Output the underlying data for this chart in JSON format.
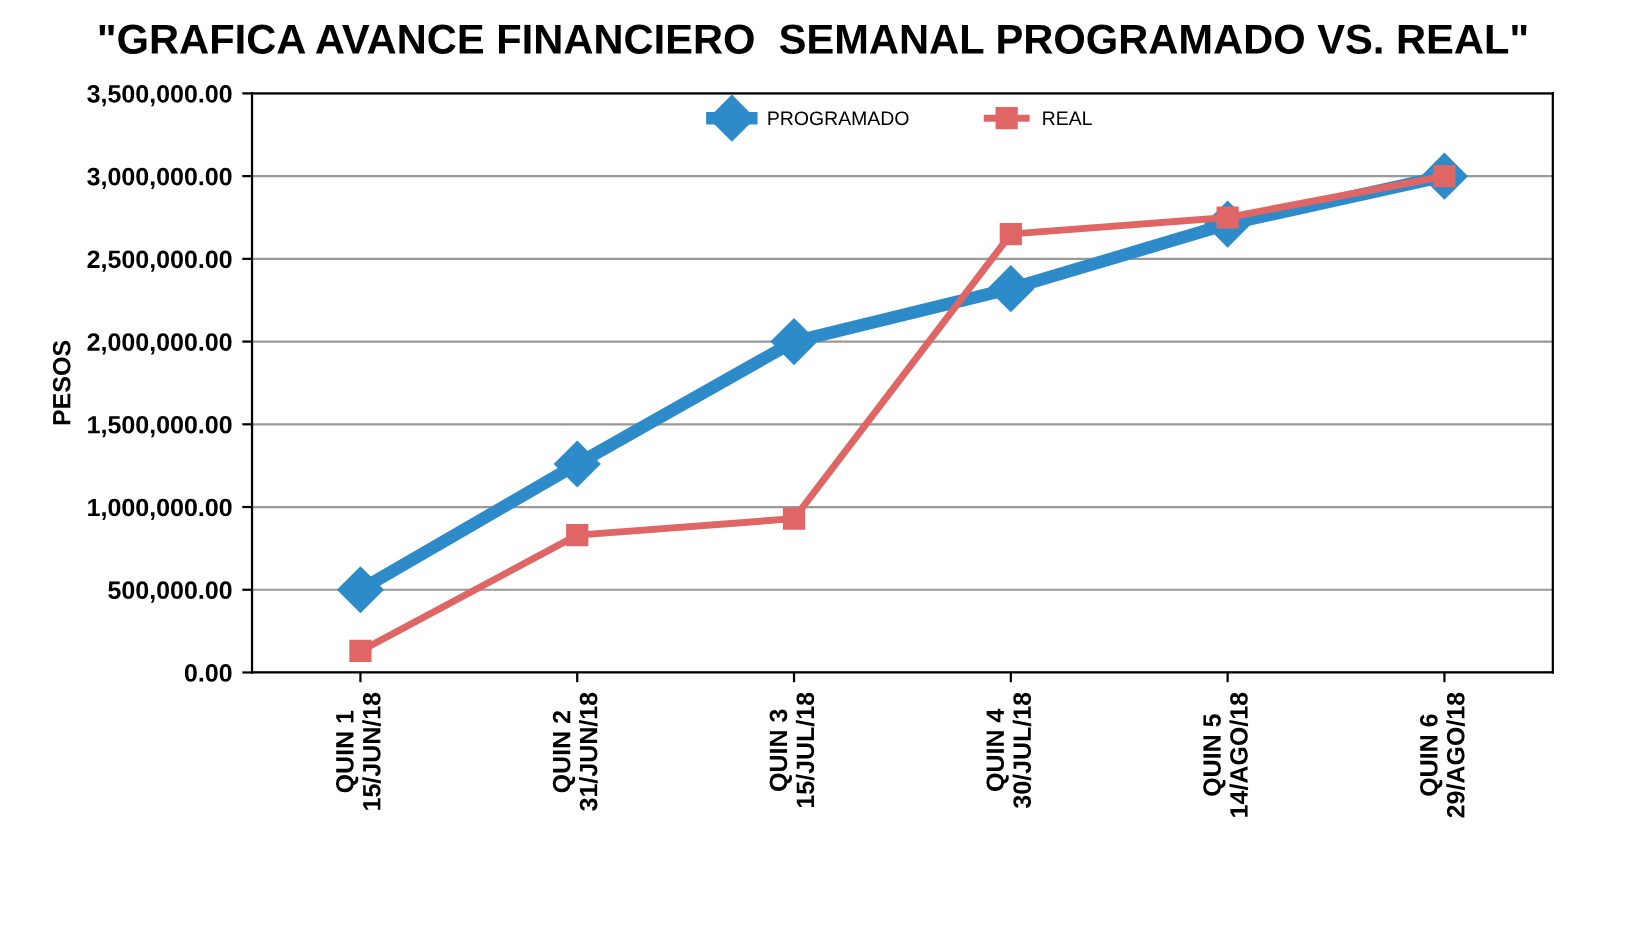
{
  "chart_data": {
    "type": "line",
    "title": "\"GRAFICA AVANCE FINANCIERO  SEMANAL PROGRAMADO VS. REAL\"",
    "ylabel": "PESOS",
    "categories": [
      "QUIN 1\n15/JUN/18",
      "QUIN 2\n31/JUN/18",
      "QUIN 3\n15/JUL/18",
      "QUIN 4\n30/JUL/18",
      "QUIN 5\n14/AGO/18",
      "QUIN 6\n29/AGO/18"
    ],
    "series": [
      {
        "name": "PROGRAMADO",
        "color": "#2e8bc9",
        "marker": "diamond",
        "values": [
          500000,
          1260000,
          2000000,
          2320000,
          2710000,
          3000000
        ]
      },
      {
        "name": "REAL",
        "color": "#e06666",
        "marker": "square",
        "values": [
          130000,
          830000,
          930000,
          2650000,
          2750000,
          3000000
        ]
      }
    ],
    "ylim": [
      0,
      3500000
    ],
    "yticks": [
      {
        "value": 0,
        "label": "0.00"
      },
      {
        "value": 500000,
        "label": "500,000.00"
      },
      {
        "value": 1000000,
        "label": "1,000,000.00"
      },
      {
        "value": 1500000,
        "label": "1,500,000.00"
      },
      {
        "value": 2000000,
        "label": "2,000,000.00"
      },
      {
        "value": 2500000,
        "label": "2,500,000.00"
      },
      {
        "value": 3000000,
        "label": "3,000,000.00"
      },
      {
        "value": 3500000,
        "label": "3,500,000.00"
      }
    ],
    "grid": "y",
    "legend": "top",
    "line_style": "solid"
  }
}
